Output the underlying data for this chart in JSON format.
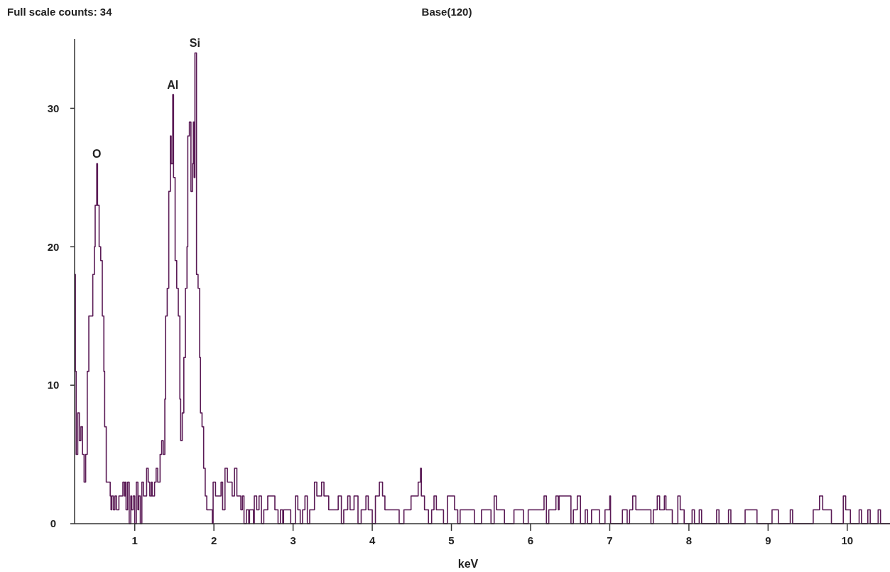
{
  "chart_data": {
    "type": "step",
    "title": "Base(120)",
    "xlabel": "keV",
    "annotations": [
      "Full scale counts: 34",
      {
        "text": "O",
        "x": 0.52,
        "y": 26
      },
      {
        "text": "Al",
        "x": 1.48,
        "y": 31
      },
      {
        "text": "Si",
        "x": 1.76,
        "y": 34
      }
    ],
    "xlim": [
      0.24,
      10.54
    ],
    "xticks": [
      1,
      2,
      3,
      4,
      5,
      6,
      7,
      8,
      9,
      10
    ],
    "ylim": [
      0,
      35
    ],
    "yticks": [
      0,
      10,
      20,
      30
    ],
    "grid": false,
    "marker": "none",
    "line_style": "solid",
    "series": [
      {
        "color": "#5a1a55",
        "x": [
          0.24,
          0.25,
          0.26,
          0.28,
          0.3,
          0.32,
          0.34,
          0.36,
          0.38,
          0.4,
          0.42,
          0.46,
          0.47,
          0.49,
          0.5,
          0.52,
          0.53,
          0.55,
          0.57,
          0.59,
          0.61,
          0.62,
          0.64,
          0.69,
          0.7,
          0.71,
          0.73,
          0.75,
          0.77,
          0.8,
          0.85,
          0.87,
          0.88,
          0.89,
          0.91,
          0.93,
          0.95,
          0.96,
          0.98,
          1.0,
          1.02,
          1.04,
          1.05,
          1.07,
          1.09,
          1.11,
          1.15,
          1.17,
          1.19,
          1.21,
          1.22,
          1.25,
          1.27,
          1.29,
          1.32,
          1.34,
          1.36,
          1.38,
          1.39,
          1.41,
          1.43,
          1.45,
          1.46,
          1.48,
          1.49,
          1.51,
          1.53,
          1.55,
          1.57,
          1.58,
          1.6,
          1.62,
          1.64,
          1.66,
          1.67,
          1.69,
          1.71,
          1.73,
          1.74,
          1.75,
          1.76,
          1.78,
          1.8,
          1.82,
          1.83,
          1.85,
          1.87,
          1.89,
          1.91,
          1.98,
          1.99,
          2.02,
          2.09,
          2.11,
          2.14,
          2.17,
          2.23,
          2.26,
          2.29,
          2.34,
          2.36,
          2.38,
          2.41,
          2.44,
          2.45,
          2.5,
          2.51,
          2.54,
          2.57,
          2.6,
          2.63,
          2.68,
          2.77,
          2.81,
          2.84,
          2.87,
          2.88,
          2.97,
          3.03,
          3.06,
          3.09,
          3.12,
          3.15,
          3.18,
          3.21,
          3.27,
          3.3,
          3.36,
          3.39,
          3.45,
          3.57,
          3.61,
          3.64,
          3.69,
          3.72,
          3.77,
          3.82,
          3.86,
          3.92,
          3.95,
          4.0,
          4.04,
          4.09,
          4.13,
          4.16,
          4.34,
          4.4,
          4.49,
          4.58,
          4.61,
          4.62,
          4.66,
          4.71,
          4.75,
          4.78,
          4.81,
          4.9,
          4.95,
          5.04,
          5.08,
          5.11,
          5.29,
          5.38,
          5.5,
          5.54,
          5.57,
          5.67,
          5.79,
          5.91,
          5.97,
          6.17,
          6.2,
          6.23,
          6.32,
          6.35,
          6.36,
          6.51,
          6.54,
          6.59,
          6.63,
          6.69,
          6.72,
          6.77,
          6.87,
          6.94,
          7.0,
          7.01,
          7.16,
          7.22,
          7.25,
          7.29,
          7.33,
          7.52,
          7.55,
          7.6,
          7.63,
          7.69,
          7.71,
          7.79,
          7.86,
          7.89,
          7.94,
          8.04,
          8.07,
          8.13,
          8.16,
          8.35,
          8.38,
          8.5,
          8.53,
          8.71,
          8.86,
          9.05,
          9.13,
          9.28,
          9.31,
          9.57,
          9.65,
          9.69,
          9.8,
          9.95,
          9.98,
          10.04,
          10.15,
          10.18,
          10.26,
          10.29,
          10.39,
          10.42,
          10.54
        ],
        "values": [
          18,
          11,
          5,
          8,
          6,
          7,
          5,
          3,
          5,
          11,
          15,
          15,
          18,
          20,
          23,
          26,
          23,
          20,
          19,
          15,
          11,
          7,
          3,
          2,
          1,
          2,
          1,
          2,
          1,
          2,
          3,
          2,
          3,
          1,
          3,
          0,
          2,
          1,
          2,
          0,
          3,
          1,
          2,
          0,
          3,
          2,
          4,
          3,
          2,
          3,
          2,
          3,
          4,
          3,
          5,
          6,
          5,
          9,
          15,
          17,
          24,
          28,
          26,
          31,
          25,
          19,
          17,
          15,
          9,
          6,
          8,
          12,
          17,
          20,
          28,
          29,
          24,
          26,
          29,
          25,
          34,
          18,
          17,
          12,
          8,
          7,
          4,
          2,
          1,
          0,
          3,
          2,
          3,
          1,
          4,
          3,
          2,
          4,
          2,
          1,
          2,
          0,
          1,
          0,
          1,
          0,
          2,
          1,
          2,
          0,
          1,
          2,
          1,
          0,
          1,
          0,
          1,
          0,
          2,
          1,
          0,
          1,
          2,
          0,
          1,
          3,
          2,
          3,
          2,
          1,
          2,
          0,
          1,
          2,
          1,
          2,
          0,
          1,
          2,
          1,
          0,
          2,
          3,
          2,
          1,
          0,
          1,
          2,
          3,
          4,
          2,
          1,
          0,
          1,
          2,
          1,
          0,
          2,
          1,
          0,
          1,
          0,
          1,
          0,
          2,
          1,
          0,
          1,
          0,
          1,
          2,
          0,
          1,
          2,
          1,
          2,
          0,
          1,
          2,
          0,
          1,
          0,
          1,
          0,
          1,
          2,
          0,
          1,
          0,
          1,
          2,
          1,
          0,
          1,
          2,
          1,
          2,
          1,
          0,
          2,
          1,
          0,
          1,
          0,
          1,
          0,
          1,
          0,
          1,
          0,
          1,
          0,
          1,
          0,
          1,
          0,
          1,
          2,
          1,
          0,
          2,
          1,
          0,
          1,
          0,
          1,
          0,
          1,
          0,
          0
        ]
      }
    ]
  }
}
